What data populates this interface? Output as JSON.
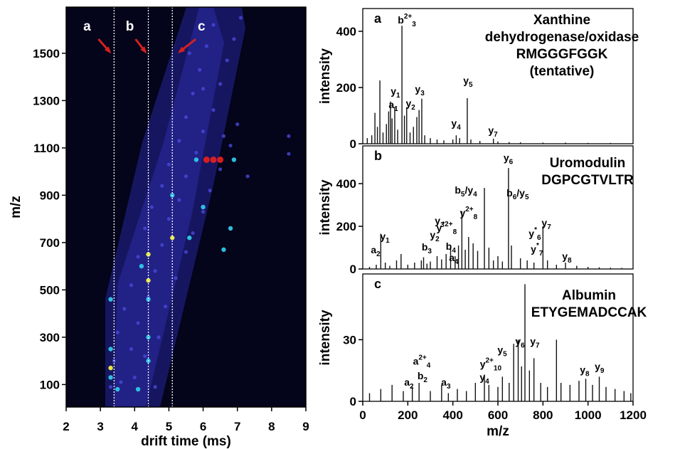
{
  "chart_data": [
    {
      "type": "scatter",
      "xlabel": "drift time (ms)",
      "ylabel": "m/z",
      "xlim": [
        2,
        9
      ],
      "ylim": [
        5,
        1695
      ],
      "xticks": [
        2,
        3,
        4,
        5,
        6,
        7,
        8,
        9
      ],
      "yticks": [
        100,
        300,
        500,
        700,
        900,
        1100,
        1300,
        1500
      ],
      "series": [
        {
          "color": "#4848d8",
          "x": [
            3.3,
            3.6,
            4.0,
            4.6,
            3.4,
            3.9,
            4.3,
            3.5,
            4.1,
            4.7,
            3.7,
            4.4,
            4.9,
            3.9,
            4.6,
            5.2,
            4.1,
            4.8,
            5.5,
            4.3,
            5.0,
            5.7,
            4.5,
            5.3,
            6.0,
            4.8,
            5.5,
            6.2,
            5.0,
            5.8,
            6.5,
            5.3,
            6.0,
            6.8,
            5.5,
            6.3,
            7.0,
            5.7,
            6.5,
            5.9,
            6.7,
            6.1,
            6.9,
            6.3,
            7.1,
            5.6,
            6.0,
            6.6,
            7.3,
            8.5,
            8.5
          ],
          "values": [
            90,
            110,
            130,
            90,
            200,
            250,
            220,
            320,
            360,
            300,
            420,
            470,
            430,
            520,
            580,
            550,
            640,
            690,
            660,
            760,
            800,
            740,
            850,
            880,
            830,
            940,
            980,
            920,
            1030,
            1080,
            1010,
            1130,
            1170,
            1110,
            1230,
            1260,
            1200,
            1330,
            1370,
            1430,
            1470,
            1530,
            1560,
            1620,
            1650,
            1500,
            1350,
            1150,
            980,
            1150,
            1075
          ]
        },
        {
          "color": "#30c8e8",
          "x": [
            3.3,
            3.3,
            3.3,
            4.4,
            4.4,
            4.4,
            3.5,
            4.1,
            5.1,
            6.0,
            6.6,
            6.8,
            5.8,
            6.9,
            4.2,
            5.6
          ],
          "values": [
            460,
            250,
            130,
            460,
            300,
            200,
            80,
            80,
            900,
            850,
            670,
            760,
            1050,
            1050,
            600,
            720
          ]
        },
        {
          "color": "#f0f040",
          "x": [
            4.4,
            4.4,
            5.1,
            3.3
          ],
          "values": [
            650,
            540,
            720,
            170
          ]
        },
        {
          "color": "#e02020",
          "x": [
            6.1,
            6.3,
            6.5
          ],
          "values": [
            1050,
            1050,
            1050
          ]
        }
      ],
      "markers": [
        {
          "x": 3.4,
          "label": "a"
        },
        {
          "x": 4.4,
          "label": "b"
        },
        {
          "x": 5.1,
          "label": "c"
        }
      ]
    },
    {
      "type": "stem",
      "panel": "a",
      "title_lines": [
        "Xanthine",
        "dehydrogenase/oxidase",
        "RMGGGFGGK",
        "(tentative)"
      ],
      "ylabel": "intensity",
      "xlim": [
        0,
        1200
      ],
      "ylim": [
        0,
        481
      ],
      "yticks": [
        0,
        200,
        400
      ],
      "color": "#111111",
      "x": [
        20,
        40,
        54,
        65,
        76,
        90,
        105,
        115,
        123,
        130,
        142,
        155,
        174,
        185,
        195,
        210,
        225,
        240,
        250,
        262,
        275,
        300,
        330,
        360,
        400,
        415,
        430,
        464,
        480,
        520,
        580,
        600,
        650,
        700,
        800,
        900,
        1000,
        1100
      ],
      "values": [
        20,
        30,
        110,
        60,
        225,
        40,
        70,
        115,
        150,
        90,
        130,
        50,
        420,
        100,
        130,
        40,
        60,
        95,
        120,
        160,
        30,
        20,
        15,
        12,
        15,
        30,
        20,
        162,
        15,
        10,
        18,
        8,
        6,
        5,
        4,
        4,
        3,
        3
      ],
      "annotations": [
        {
          "x": 196,
          "y": 428,
          "label": [
            {
              "t": "b"
            },
            {
              "sup": "2+"
            },
            {
              "sub": "3"
            }
          ]
        },
        {
          "x": 145,
          "y": 175,
          "label": [
            {
              "t": "y"
            },
            {
              "sub": "1"
            }
          ]
        },
        {
          "x": 136,
          "y": 127,
          "label": [
            {
              "t": "a"
            },
            {
              "sub": "1"
            }
          ]
        },
        {
          "x": 212,
          "y": 132,
          "label": [
            {
              "t": "y"
            },
            {
              "sub": "2"
            }
          ]
        },
        {
          "x": 253,
          "y": 182,
          "label": [
            {
              "t": "y"
            },
            {
              "sub": "3"
            }
          ]
        },
        {
          "x": 467,
          "y": 213,
          "label": [
            {
              "t": "y"
            },
            {
              "sub": "5"
            }
          ]
        },
        {
          "x": 414,
          "y": 61,
          "label": [
            {
              "t": "y"
            },
            {
              "sub": "4"
            }
          ]
        },
        {
          "x": 578,
          "y": 35,
          "label": [
            {
              "t": "y"
            },
            {
              "sub": "7"
            }
          ]
        }
      ]
    },
    {
      "type": "stem",
      "panel": "b",
      "title_lines": [
        "Uromodulin",
        "DGPCGTVLTR"
      ],
      "ylabel": "intensity",
      "xlim": [
        0,
        1200
      ],
      "ylim": [
        0,
        577
      ],
      "yticks": [
        0,
        200,
        400
      ],
      "color": "#111111",
      "x": [
        30,
        60,
        80,
        100,
        120,
        150,
        170,
        200,
        230,
        260,
        270,
        285,
        300,
        330,
        350,
        370,
        390,
        410,
        425,
        440,
        455,
        470,
        490,
        510,
        540,
        560,
        580,
        600,
        620,
        647,
        660,
        700,
        730,
        760,
        800,
        820,
        860,
        900,
        950,
        1000,
        1050,
        1100,
        1150
      ],
      "values": [
        10,
        20,
        165,
        30,
        15,
        40,
        70,
        20,
        30,
        40,
        55,
        25,
        35,
        60,
        45,
        70,
        95,
        60,
        110,
        270,
        90,
        150,
        120,
        85,
        380,
        100,
        40,
        60,
        35,
        473,
        110,
        50,
        40,
        30,
        200,
        40,
        20,
        30,
        15,
        10,
        8,
        6,
        5
      ],
      "annotations": [
        {
          "x": 646,
          "y": 505,
          "label": [
            {
              "t": "y"
            },
            {
              "sub": "6"
            }
          ]
        },
        {
          "x": 458,
          "y": 353,
          "label": [
            {
              "t": "b"
            },
            {
              "sub": "5"
            },
            {
              "t": "/y"
            },
            {
              "sub": "4"
            }
          ]
        },
        {
          "x": 470,
          "y": 247,
          "label": [
            {
              "t": "y"
            },
            {
              "sup": "2+"
            },
            {
              "sub": "8"
            }
          ]
        },
        {
          "x": 372,
          "y": 177,
          "label": [
            {
              "t": "y"
            },
            {
              "sup": "*2+"
            },
            {
              "sub": "8"
            }
          ]
        },
        {
          "x": 688,
          "y": 340,
          "label": [
            {
              "t": "b"
            },
            {
              "sub": "6"
            },
            {
              "t": "/y"
            },
            {
              "sub": "5"
            }
          ]
        },
        {
          "x": 764,
          "y": 150,
          "label": [
            {
              "t": "y"
            },
            {
              "sup": "*"
            },
            {
              "sub": "6"
            }
          ]
        },
        {
          "x": 773,
          "y": 77,
          "label": [
            {
              "t": "y"
            },
            {
              "sup": "*"
            },
            {
              "sub": "7"
            }
          ]
        },
        {
          "x": 815,
          "y": 200,
          "label": [
            {
              "t": "y"
            },
            {
              "sub": "7"
            }
          ]
        },
        {
          "x": 906,
          "y": 43,
          "label": [
            {
              "t": "y"
            },
            {
              "sub": "8"
            }
          ]
        },
        {
          "x": 98,
          "y": 137,
          "label": [
            {
              "t": "y"
            },
            {
              "sub": "1"
            }
          ]
        },
        {
          "x": 57,
          "y": 73,
          "label": [
            {
              "t": "a"
            },
            {
              "sub": "2"
            }
          ]
        },
        {
          "x": 284,
          "y": 87,
          "label": [
            {
              "t": "b"
            },
            {
              "sub": "3"
            }
          ]
        },
        {
          "x": 319,
          "y": 143,
          "label": [
            {
              "t": "y"
            },
            {
              "sub": "2"
            }
          ]
        },
        {
          "x": 341,
          "y": 210,
          "label": [
            {
              "t": "y"
            },
            {
              "sub": "3"
            }
          ]
        },
        {
          "x": 391,
          "y": 90,
          "label": [
            {
              "t": "b"
            },
            {
              "sub": "4"
            }
          ]
        },
        {
          "x": 404,
          "y": 37,
          "label": [
            {
              "t": "a"
            },
            {
              "sub": "4"
            }
          ]
        }
      ]
    },
    {
      "type": "stem",
      "panel": "c",
      "title_lines": [
        "Albumin",
        "ETYGEMADCCAK"
      ],
      "ylabel": "intensity",
      "xlabel": "m/z",
      "xlim": [
        0,
        1200
      ],
      "ylim": [
        0,
        62
      ],
      "yticks": [
        0,
        30
      ],
      "xticks": [
        0,
        200,
        400,
        600,
        800,
        1000,
        1200
      ],
      "color": "#111111",
      "x": [
        30,
        80,
        130,
        180,
        220,
        250,
        300,
        350,
        380,
        420,
        460,
        500,
        540,
        560,
        600,
        620,
        650,
        670,
        690,
        705,
        720,
        740,
        760,
        790,
        820,
        860,
        880,
        920,
        960,
        990,
        1020,
        1050,
        1080,
        1120,
        1160,
        1190
      ],
      "values": [
        4,
        6,
        8,
        5,
        7,
        9,
        5,
        8,
        4,
        6,
        5,
        9,
        13,
        8,
        7,
        12,
        9,
        28,
        30,
        17,
        57,
        15,
        21,
        9,
        7,
        30,
        9,
        8,
        10,
        11,
        8,
        12,
        7,
        6,
        5,
        4
      ],
      "annotations": [
        {
          "x": 262,
          "y": 17.8,
          "label": [
            {
              "t": "a"
            },
            {
              "sup": "2+"
            },
            {
              "sub": "4"
            }
          ]
        },
        {
          "x": 265,
          "y": 10.8,
          "label": [
            {
              "t": "b"
            },
            {
              "sub": "2"
            }
          ]
        },
        {
          "x": 205,
          "y": 7.7,
          "label": [
            {
              "t": "a"
            },
            {
              "sub": "2"
            }
          ]
        },
        {
          "x": 369,
          "y": 7.7,
          "label": [
            {
              "t": "a"
            },
            {
              "sub": "3"
            }
          ]
        },
        {
          "x": 568,
          "y": 16.4,
          "label": [
            {
              "t": "y"
            },
            {
              "sup": "2+"
            },
            {
              "sub": "10"
            }
          ]
        },
        {
          "x": 619,
          "y": 23.3,
          "label": [
            {
              "t": "y"
            },
            {
              "sub": "5"
            }
          ]
        },
        {
          "x": 540,
          "y": 10.1,
          "label": [
            {
              "t": "y"
            },
            {
              "sub": "4"
            }
          ]
        },
        {
          "x": 698,
          "y": 27.5,
          "label": [
            {
              "t": "y"
            },
            {
              "sub": "6"
            }
          ]
        },
        {
          "x": 764,
          "y": 27.5,
          "label": [
            {
              "t": "y"
            },
            {
              "sub": "7"
            }
          ]
        },
        {
          "x": 985,
          "y": 13.6,
          "label": [
            {
              "t": "y"
            },
            {
              "sub": "8"
            }
          ]
        },
        {
          "x": 1051,
          "y": 15.3,
          "label": [
            {
              "t": "y"
            },
            {
              "sub": "9"
            }
          ]
        }
      ]
    }
  ]
}
